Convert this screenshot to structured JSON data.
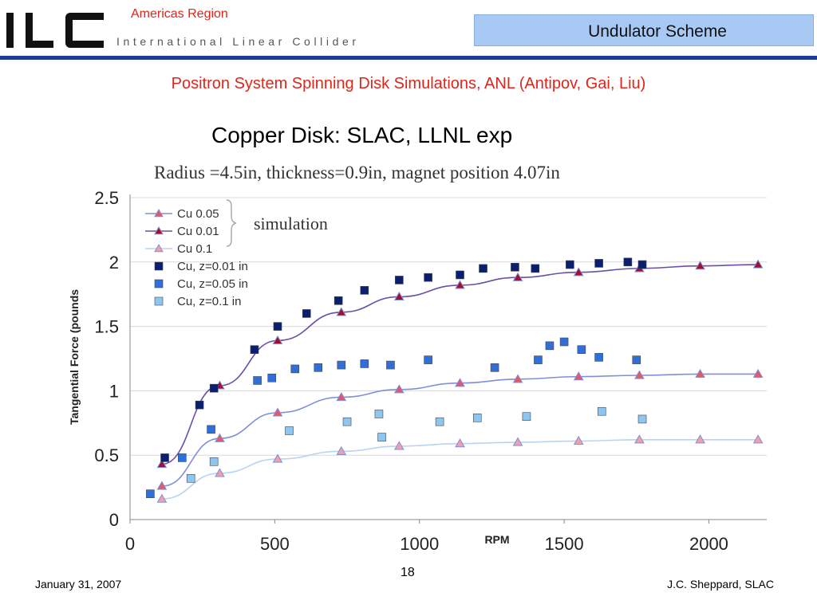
{
  "header": {
    "logo_text": "ILC",
    "logo_subtitle": "International Linear Collider",
    "region": "Americas Region",
    "slide_title": "Undulator Scheme",
    "colors": {
      "accent": "#e0251b",
      "rule": "#1f3b94",
      "title_box": "#a9c9f5"
    }
  },
  "subtitle": "Positron System Spinning Disk Simulations, ANL (Antipov, Gai, Liu)",
  "heading": "Copper Disk: SLAC, LLNL exp",
  "chart_data": {
    "type": "scatter",
    "title": "Radius =4.5in, thickness=0.9in, magnet position 4.07in",
    "xlabel": "RPM",
    "ylabel": "Tangential Force (pounds",
    "xlim": [
      0,
      2200
    ],
    "ylim": [
      0,
      2.5
    ],
    "xticks": [
      "0",
      "500",
      "1000",
      "1500",
      "2000"
    ],
    "yticks": [
      "0",
      "0.5",
      "1",
      "1.5",
      "2",
      "2.5"
    ],
    "annotation": "simulation",
    "legend_position": "top-left",
    "grid": "horizontal",
    "series": [
      {
        "name": "Cu 0.05",
        "kind": "simulation",
        "marker": "triangle",
        "color": "#e05a6a",
        "line": "#7f8fd8",
        "x": [
          110,
          310,
          510,
          730,
          930,
          1140,
          1340,
          1550,
          1760,
          1970,
          2170
        ],
        "y": [
          0.26,
          0.63,
          0.83,
          0.95,
          1.01,
          1.06,
          1.09,
          1.11,
          1.12,
          1.13,
          1.13
        ]
      },
      {
        "name": "Cu 0.01",
        "kind": "simulation",
        "marker": "triangle",
        "color": "#a01030",
        "line": "#6a4ea8",
        "x": [
          110,
          310,
          510,
          730,
          930,
          1140,
          1340,
          1550,
          1760,
          1970,
          2170
        ],
        "y": [
          0.43,
          1.04,
          1.39,
          1.61,
          1.73,
          1.82,
          1.88,
          1.92,
          1.95,
          1.97,
          1.98
        ]
      },
      {
        "name": "Cu 0.1",
        "kind": "simulation",
        "marker": "triangle",
        "color": "#f0a0a8",
        "line": "#b8d4f0",
        "x": [
          110,
          310,
          510,
          730,
          930,
          1140,
          1340,
          1550,
          1760,
          1970,
          2170
        ],
        "y": [
          0.16,
          0.36,
          0.47,
          0.53,
          0.57,
          0.59,
          0.6,
          0.61,
          0.62,
          0.62,
          0.62
        ]
      },
      {
        "name": "Cu, z=0.01 in",
        "kind": "experiment",
        "marker": "square",
        "color": "#0a1f6e",
        "x": [
          120,
          240,
          290,
          430,
          510,
          610,
          720,
          810,
          930,
          1030,
          1140,
          1220,
          1330,
          1400,
          1520,
          1620,
          1720,
          1770
        ],
        "y": [
          0.48,
          0.89,
          1.02,
          1.32,
          1.5,
          1.6,
          1.7,
          1.78,
          1.86,
          1.88,
          1.9,
          1.95,
          1.96,
          1.95,
          1.98,
          1.99,
          2.0,
          1.98
        ]
      },
      {
        "name": "Cu, z=0.05 in",
        "kind": "experiment",
        "marker": "square",
        "color": "#2f6fd6",
        "x": [
          70,
          180,
          280,
          440,
          490,
          570,
          650,
          730,
          810,
          900,
          1030,
          1260,
          1410,
          1450,
          1500,
          1560,
          1620,
          1750
        ],
        "y": [
          0.2,
          0.48,
          0.7,
          1.08,
          1.1,
          1.17,
          1.18,
          1.2,
          1.21,
          1.2,
          1.24,
          1.18,
          1.24,
          1.35,
          1.38,
          1.32,
          1.26,
          1.24
        ]
      },
      {
        "name": "Cu, z=0.1 in",
        "kind": "experiment",
        "marker": "square",
        "color": "#8ec6ee",
        "x": [
          210,
          290,
          550,
          750,
          860,
          870,
          1070,
          1200,
          1370,
          1630,
          1770
        ],
        "y": [
          0.32,
          0.45,
          0.69,
          0.76,
          0.82,
          0.64,
          0.76,
          0.79,
          0.8,
          0.84,
          0.78
        ]
      }
    ]
  },
  "footer": {
    "date": "January 31, 2007",
    "page": "18",
    "author": "J.C. Sheppard, SLAC"
  }
}
